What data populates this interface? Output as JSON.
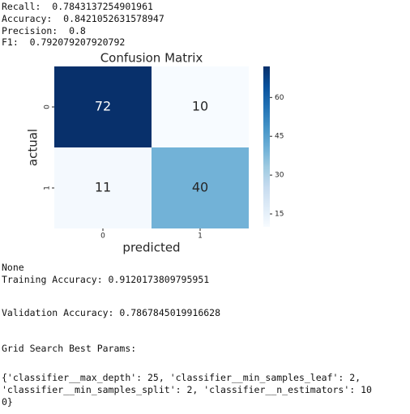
{
  "output_top": [
    "Recall:  0.7843137254901961",
    "Accuracy:  0.8421052631578947",
    "Precision:  0.8",
    "F1:  0.792079207920792"
  ],
  "chart_data": {
    "type": "heatmap",
    "title": "Confusion Matrix",
    "x_label": "predicted",
    "y_label": "actual",
    "x_categories": [
      "0",
      "1"
    ],
    "y_categories": [
      "0",
      "1"
    ],
    "values": [
      [
        72,
        10
      ],
      [
        11,
        40
      ]
    ],
    "colormap": "Blues",
    "clim": [
      10,
      72
    ],
    "cticks": [
      15,
      30,
      45,
      60
    ]
  },
  "output_bottom": [
    "None",
    "Training Accuracy: 0.9120173809795951",
    "Validation Accuracy: 0.7867845019916628",
    "Grid Search Best Params:",
    "{'classifier__max_depth': 25, 'classifier__min_samples_leaf': 2,",
    "'classifier__min_samples_split': 2, 'classifier__n_estimators': 10",
    "0}"
  ]
}
